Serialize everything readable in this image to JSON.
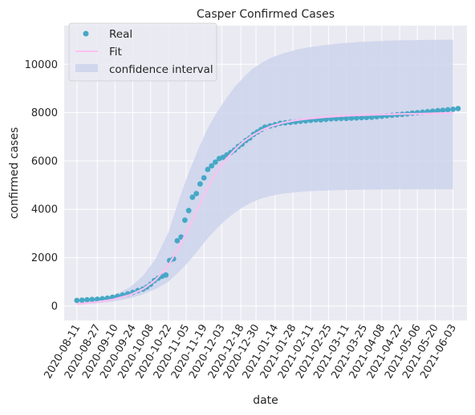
{
  "chart_data": {
    "type": "scatter",
    "title": "Casper Confirmed Cases",
    "xlabel": "date",
    "ylabel": "confirmed cases",
    "x_ticks": [
      "2020-08-11",
      "2020-08-27",
      "2020-09-10",
      "2020-09-24",
      "2020-10-08",
      "2020-10-22",
      "2020-11-05",
      "2020-11-19",
      "2020-12-03",
      "2020-12-18",
      "2020-12-30",
      "2021-01-14",
      "2021-01-28",
      "2021-02-11",
      "2021-02-25",
      "2021-03-11",
      "2021-03-25",
      "2021-04-08",
      "2021-04-22",
      "2021-05-06",
      "2021-05-20",
      "2021-06-03"
    ],
    "y_ticks": [
      "0",
      "2000",
      "4000",
      "6000",
      "8000",
      "10000"
    ],
    "ylim": [
      -600,
      11600
    ],
    "xlim": [
      "2020-08-01",
      "2021-06-14"
    ],
    "grid": true,
    "legend_position": "top-left",
    "colors": {
      "real": "#46a8c6",
      "fit": "#ffc0f2",
      "confidence": "#cdd3ec",
      "background": "#eaeaf2",
      "grid": "#ffffff"
    },
    "series": [
      {
        "name": "Real",
        "style": "markers",
        "x": [
          "2020-08-11",
          "2020-08-15",
          "2020-08-19",
          "2020-08-23",
          "2020-08-27",
          "2020-08-31",
          "2020-09-04",
          "2020-09-08",
          "2020-09-12",
          "2020-09-16",
          "2020-09-20",
          "2020-09-24",
          "2020-09-28",
          "2020-10-02",
          "2020-10-05",
          "2020-10-08",
          "2020-10-11",
          "2020-10-14",
          "2020-10-17",
          "2020-10-20",
          "2020-10-23",
          "2020-10-26",
          "2020-10-29",
          "2020-11-01",
          "2020-11-04",
          "2020-11-07",
          "2020-11-10",
          "2020-11-13",
          "2020-11-16",
          "2020-11-19",
          "2020-11-22",
          "2020-11-25",
          "2020-11-28",
          "2020-12-01",
          "2020-12-04",
          "2020-12-07",
          "2020-12-10",
          "2020-12-13",
          "2020-12-16",
          "2020-12-19",
          "2020-12-22",
          "2020-12-25",
          "2020-12-28",
          "2020-12-31",
          "2021-01-03",
          "2021-01-06",
          "2021-01-10",
          "2021-01-14",
          "2021-01-18",
          "2021-01-22",
          "2021-01-26",
          "2021-01-30",
          "2021-02-03",
          "2021-02-07",
          "2021-02-11",
          "2021-02-15",
          "2021-02-19",
          "2021-02-23",
          "2021-02-27",
          "2021-03-03",
          "2021-03-07",
          "2021-03-11",
          "2021-03-15",
          "2021-03-19",
          "2021-03-23",
          "2021-03-27",
          "2021-03-31",
          "2021-04-04",
          "2021-04-08",
          "2021-04-12",
          "2021-04-16",
          "2021-04-20",
          "2021-04-24",
          "2021-04-28",
          "2021-05-02",
          "2021-05-06",
          "2021-05-10",
          "2021-05-14",
          "2021-05-18",
          "2021-05-22",
          "2021-05-26",
          "2021-05-30",
          "2021-06-03",
          "2021-06-07"
        ],
        "y": [
          230,
          240,
          260,
          270,
          280,
          300,
          320,
          360,
          400,
          450,
          500,
          560,
          640,
          700,
          780,
          900,
          1050,
          1150,
          1230,
          1280,
          1880,
          1950,
          2700,
          2850,
          3550,
          3950,
          4500,
          4650,
          5050,
          5300,
          5650,
          5800,
          5950,
          6100,
          6150,
          6250,
          6350,
          6450,
          6600,
          6700,
          6850,
          6950,
          7100,
          7200,
          7300,
          7400,
          7450,
          7500,
          7560,
          7580,
          7600,
          7620,
          7640,
          7660,
          7680,
          7700,
          7700,
          7720,
          7740,
          7750,
          7760,
          7760,
          7770,
          7780,
          7790,
          7800,
          7810,
          7830,
          7850,
          7870,
          7890,
          7910,
          7930,
          7950,
          7980,
          8000,
          8020,
          8040,
          8060,
          8080,
          8100,
          8120,
          8140,
          8170
        ]
      },
      {
        "name": "Fit",
        "style": "line",
        "x": [
          "2020-08-11",
          "2020-08-25",
          "2020-09-08",
          "2020-09-22",
          "2020-10-02",
          "2020-10-12",
          "2020-10-22",
          "2020-11-01",
          "2020-11-08",
          "2020-11-15",
          "2020-11-22",
          "2020-11-29",
          "2020-12-06",
          "2020-12-13",
          "2020-12-20",
          "2020-12-27",
          "2021-01-03",
          "2021-01-10",
          "2021-01-20",
          "2021-01-30",
          "2021-02-09",
          "2021-02-23",
          "2021-03-09",
          "2021-03-23",
          "2021-04-06",
          "2021-04-20",
          "2021-05-04",
          "2021-05-18",
          "2021-06-03"
        ],
        "y": [
          80,
          150,
          260,
          460,
          700,
          1080,
          1680,
          2600,
          3350,
          4150,
          4900,
          5550,
          6050,
          6450,
          6800,
          7050,
          7260,
          7420,
          7580,
          7680,
          7750,
          7820,
          7870,
          7900,
          7920,
          7940,
          7950,
          7970,
          7990
        ]
      },
      {
        "name": "confidence interval",
        "style": "band",
        "x": [
          "2020-08-11",
          "2020-08-25",
          "2020-09-08",
          "2020-09-22",
          "2020-10-02",
          "2020-10-12",
          "2020-10-22",
          "2020-11-01",
          "2020-11-08",
          "2020-11-15",
          "2020-11-22",
          "2020-11-29",
          "2020-12-06",
          "2020-12-13",
          "2020-12-20",
          "2020-12-27",
          "2021-01-03",
          "2021-01-10",
          "2021-01-20",
          "2021-01-30",
          "2021-02-09",
          "2021-02-23",
          "2021-03-09",
          "2021-03-23",
          "2021-04-06",
          "2021-04-20",
          "2021-05-04",
          "2021-05-18",
          "2021-06-03"
        ],
        "lower": [
          50,
          100,
          180,
          320,
          480,
          700,
          1000,
          1500,
          1900,
          2350,
          2800,
          3200,
          3550,
          3850,
          4100,
          4300,
          4450,
          4550,
          4650,
          4700,
          4750,
          4780,
          4800,
          4810,
          4820,
          4825,
          4830,
          4830,
          4830
        ],
        "upper": [
          120,
          230,
          420,
          780,
          1250,
          1950,
          3050,
          4650,
          5650,
          6550,
          7350,
          8000,
          8550,
          9050,
          9450,
          9800,
          10050,
          10250,
          10450,
          10600,
          10700,
          10800,
          10880,
          10930,
          10960,
          10990,
          11000,
          11010,
          11020
        ]
      }
    ]
  }
}
